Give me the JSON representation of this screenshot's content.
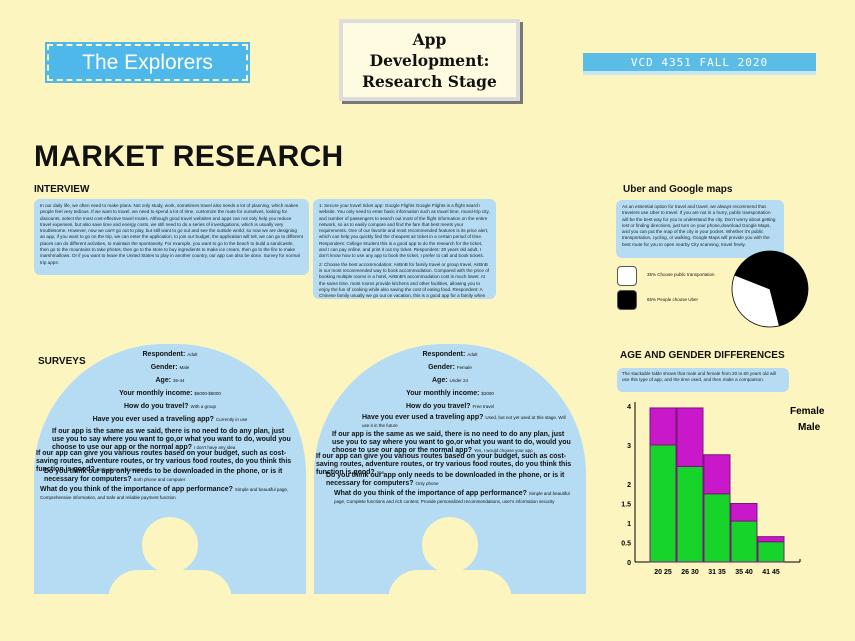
{
  "header": {
    "team": "The Explorers",
    "stage": [
      "App",
      "Development:",
      "Research Stage"
    ],
    "course": "VCD 4351 FALL 2020"
  },
  "page_title": "MARKET RESEARCH",
  "interview": {
    "heading": "INTERVIEW",
    "card1": "In our daily life, we often need to make plans. Not only study, work, sometimes travel also needs a lot of planning, which makes people feel very tedious. If we want to travel, we need to spend a lot of time, customize the route for ourselves, looking for discounts, select the most cost-effective travel routes. Although good travel websites and apps can not only help you reduce travel expenses, but also save time and energy costs, we still need to do a series of investigations, which is usually very troublesome. However, now we can't go out to play, but still want to go out and see the outside world, so now we are designing an app, if you want to go on the trip, we can enter the application, to join our budget, the application will tell, we can go to different places can do different activities, to maintain the spontaneity. For example, you want to go to the beach to build a sandcastle, then go to the mountains to take photos, then go to the store to buy ingredients to make ice cream, then go to the fire to make marshmallows. Or if you want to leave the United States to play in another country, our app can also be done. Survey for normal trip apps:",
    "card2a": "1: Secure your travel ticket app: Google Flights Google Flights is a flight search website. You only need to enter basic information such as travel time, round-trip city, and number of passengers to search out most of the flight information on the entire network, so as to easily compare and find the fare that best meets your requirements. One of our favorite and most recommended features is its price alert, which can help you quickly find the cheapest air ticket in a certain period of time. Respondent: College Student this is a good app to do the research for the ticket, and I can pay online, and print it out my ticket. Respondent: 30 years old adult, I don't know how to use any app to book the ticket, I prefer to call and book tickets.",
    "card2b": "2: Choose the best accommodation: AirBnB for family travel or group travel, AirBnB is our most recommended way to book accommodation. Compared with the price of booking multiple rooms in a hotel, AirBnB's accommodation cost is much lower. At the same time, most rooms provide kitchens and other facilities, allowing you to enjoy the fun of cooking while also saving the cost of eating food. Respondent: A Chinese family usually we go out on vacation, this is a good app for a family when going out for travel."
  },
  "uber": {
    "heading": "Uber and Google maps",
    "card": "As an essential option for travel and travel, we always recommend that travelers use Uber to travel. If you are not in a hurry, public transportation will be the best way for you to understand the city. Don't worry about getting lost or finding directions, just turn on your phone,download Google Maps, and you can put the map of the city in your pocket. Whether it's public transportation, cycling, or walking, Google Maps will provide you with the best route for you to open nearby City scanning, travel freely.",
    "legend": [
      {
        "label": "35% Choose public transportation",
        "color": "#ffffff"
      },
      {
        "label": "65% People choose Uber",
        "color": "#000000"
      }
    ]
  },
  "pie_data": {
    "type": "pie",
    "slices": [
      {
        "label": "Choose public transportation",
        "value": 35,
        "color": "#ffffff"
      },
      {
        "label": "People choose Uber",
        "value": 65,
        "color": "#000000"
      }
    ]
  },
  "surveys": {
    "heading": "SURVEYS",
    "left": {
      "respondent": "Respondent: ",
      "respondent_val": "Adult",
      "gender": "Gender: ",
      "gender_val": "Male",
      "age": "Age: ",
      "age_val": "35-44",
      "income": "Your monthly income: ",
      "income_val": "$6000-$8000",
      "travel": "How do you travel? ",
      "travel_val": "With a group",
      "used": "Have you ever used a traveling app? ",
      "used_val": "Currently in use",
      "q1": "If our app is the same as we said, there is no need to do any plan, just use you to say where you want to go,or what you want to do, would you choose to use our app or the normal app? ",
      "q1_ans": "I don't have any idea",
      "q2": "If our app can give you various routes based on your budget, such as cost-saving routes, adventure routes, or try various food routes, do you think this function is good? ",
      "q2_ans": "Both phone and computer",
      "q3": "Do you think our app only needs to be downloaded in the phone, or is it necessary for computers? ",
      "q3_ans": "Both phone and computer",
      "q4": "What do you think of the importance of app performance? ",
      "q4_ans": "Simple and beautiful page, Comprehensive information, and Safe and reliable payment function"
    },
    "right": {
      "respondent": "Respondent: ",
      "respondent_val": "Adult",
      "gender": "Gender: ",
      "gender_val": "Female",
      "age": "Age: ",
      "age_val": "Under 24",
      "income": "Your monthly income: ",
      "income_val": "$2000",
      "travel": "How do you travel? ",
      "travel_val": "Free travel",
      "used": "Have you ever used a traveling app? ",
      "used_val": "Used, but not yet used at this stage. Will use it in the future",
      "q1": "If our app is the same as we said, there is no need to do any plan, just use you to say where you want to go,or what you want to do, would you choose to use our app or the normal app? ",
      "q1_ans": "Yes, I would choose your app",
      "q2": "If our app can give you various routes based on your budget, such as cost-saving routes, adventure routes, or try various food routes, do you think this function is good? ",
      "q2_ans": "Yes",
      "q3": "Do you think our app only needs to be downloaded in the phone, or is it necessary for computers? ",
      "q3_ans": "Only phone",
      "q4": "What do you think of the importance of app performance? ",
      "q4_ans": "Simple and beautiful page, Complete functions and rich content, Provide personalized recommendations, user's information security"
    }
  },
  "age_gender": {
    "heading": "AGE AND GENDER DIFFERENCES",
    "note": "The stackable table shows that male and female from 20 to 60 years old will use this type of app, and the time used, and then make a comparison."
  },
  "chart_data": {
    "type": "bar",
    "stacked": true,
    "categories": [
      "20 25",
      "26 30",
      "31 35",
      "35 40",
      "41 45"
    ],
    "series": [
      {
        "name": "Male",
        "values": [
          3,
          2.45,
          1.75,
          1.05,
          0.52
        ],
        "color": "#16d42a"
      },
      {
        "name": "Female",
        "values": [
          0.95,
          1.5,
          1.0,
          0.45,
          0.13
        ],
        "color": "#c918c9"
      }
    ],
    "yticks": [
      "4",
      "3",
      "2",
      "1.5",
      "1",
      "0.5",
      "0"
    ],
    "ylim": [
      0,
      4
    ],
    "legend": [
      "Female",
      "Male"
    ],
    "legend_position": "top-right",
    "grid": false
  }
}
